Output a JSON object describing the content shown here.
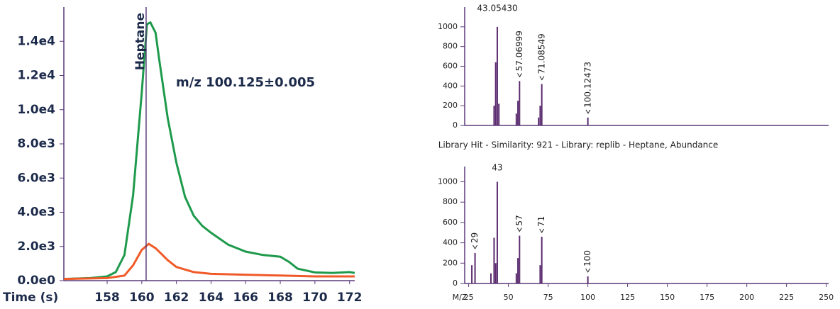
{
  "chart_data": [
    {
      "type": "line",
      "x_label": "Time (s)",
      "annotation": "m/z 100.125±0.005",
      "marker": {
        "x": 160.25,
        "label": "Heptane"
      },
      "xlim": [
        155.5,
        172.3
      ],
      "xticks": [
        158,
        160,
        162,
        164,
        166,
        168,
        170,
        172
      ],
      "ylim": [
        0,
        16000
      ],
      "yticks": [
        {
          "value": 0,
          "label": "0.0e0"
        },
        {
          "value": 2000,
          "label": "2.0e3"
        },
        {
          "value": 4000,
          "label": "4.0e3"
        },
        {
          "value": 6000,
          "label": "6.0e3"
        },
        {
          "value": 8000,
          "label": "8.0e3"
        },
        {
          "value": 10000,
          "label": "1.0e4"
        },
        {
          "value": 12000,
          "label": "1.2e4"
        },
        {
          "value": 14000,
          "label": "1.4e4"
        }
      ],
      "series": [
        {
          "color": "#1e9a4c",
          "x": [
            155.5,
            157,
            158,
            158.5,
            159,
            159.5,
            160,
            160.3,
            160.5,
            160.8,
            161,
            161.5,
            162,
            162.5,
            163,
            163.5,
            164,
            165,
            166,
            167,
            168,
            168.5,
            169,
            170,
            171,
            172,
            172.3
          ],
          "values": [
            100,
            150,
            250,
            500,
            1500,
            5000,
            11000,
            15000,
            15100,
            14500,
            13000,
            9500,
            6900,
            4900,
            3800,
            3200,
            2800,
            2100,
            1700,
            1500,
            1400,
            1100,
            700,
            480,
            450,
            500,
            450
          ]
        },
        {
          "color": "#f05a28",
          "x": [
            155.5,
            158,
            159,
            159.5,
            160,
            160.4,
            160.8,
            161.5,
            162,
            163,
            164,
            166,
            168,
            170,
            172,
            172.3
          ],
          "values": [
            100,
            150,
            300,
            900,
            1800,
            2150,
            1900,
            1200,
            800,
            500,
            400,
            350,
            300,
            250,
            250,
            250
          ]
        }
      ]
    },
    {
      "type": "stem",
      "xlim": [
        22.5,
        251.5
      ],
      "ylim": [
        0,
        1200
      ],
      "yticks": [
        0,
        200,
        400,
        600,
        800,
        1000
      ],
      "color": "#5a2a6e",
      "x": [
        41,
        42,
        43,
        44,
        55,
        56,
        57,
        69,
        70,
        71,
        100
      ],
      "values": [
        200,
        640,
        1000,
        220,
        120,
        250,
        450,
        80,
        200,
        420,
        80
      ],
      "annotations": [
        {
          "value": 43.0543,
          "label": "43.05430"
        },
        {
          "value": 57.06999,
          "label": "57.06999"
        },
        {
          "value": 71.08549,
          "label": "71.08549"
        },
        100.12473
      ]
    },
    {
      "type": "stem",
      "title": "Library Hit - Similarity: 921 - Library: replib - Heptane, Abundance",
      "x_label": "M/Z",
      "xlim": [
        22.5,
        251.5
      ],
      "xticks": [
        25,
        50,
        75,
        100,
        125,
        150,
        175,
        200,
        225,
        250
      ],
      "ylim": [
        0,
        1150
      ],
      "yticks": [
        0,
        200,
        400,
        600,
        800,
        1000
      ],
      "color": "#5a2a6e",
      "x": [
        27,
        29,
        39,
        41,
        42,
        43,
        55,
        56,
        57,
        70,
        71,
        100
      ],
      "values": [
        180,
        300,
        100,
        450,
        200,
        1000,
        100,
        250,
        470,
        180,
        460,
        70
      ],
      "annotations": [
        29,
        43,
        57,
        71,
        100
      ]
    }
  ]
}
